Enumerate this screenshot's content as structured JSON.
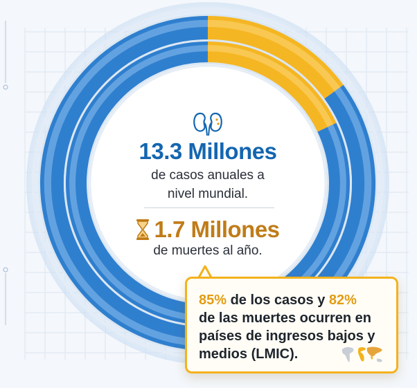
{
  "chart_data": {
    "type": "pie",
    "title": "",
    "rings": [
      {
        "name": "",
        "slices": [
          {
            "label": "",
            "value": 85,
            "color": "#2f7fcf"
          },
          {
            "label": "",
            "value": 15,
            "color": "#f5b623"
          }
        ]
      },
      {
        "name": "",
        "slices": [
          {
            "label": "",
            "value": 82,
            "color": "#2f7fcf"
          },
          {
            "label": "",
            "value": 18,
            "color": "#f5b623"
          }
        ]
      }
    ]
  },
  "colors": {
    "blue": "#1466b0",
    "gold": "#c07c18",
    "accent": "#f3b21c"
  },
  "icons": {
    "stat_cases": "kidney-icon",
    "stat_deaths": "hourglass-icon",
    "callout": "world-map-icon"
  },
  "stats": {
    "cases_value": "13.3 Millones",
    "cases_desc_line1": "de casos anuales a",
    "cases_desc_line2": "nivel mundial.",
    "deaths_value": "1.7 Millones",
    "deaths_desc": "de muertes al año."
  },
  "callout": {
    "cases_pct": "85%",
    "text1": " de los casos y ",
    "deaths_pct": "82%",
    "line2": "de las muertes ocurren en",
    "line3": "países de ingresos bajos y",
    "line4": "medios (LMIC)."
  }
}
